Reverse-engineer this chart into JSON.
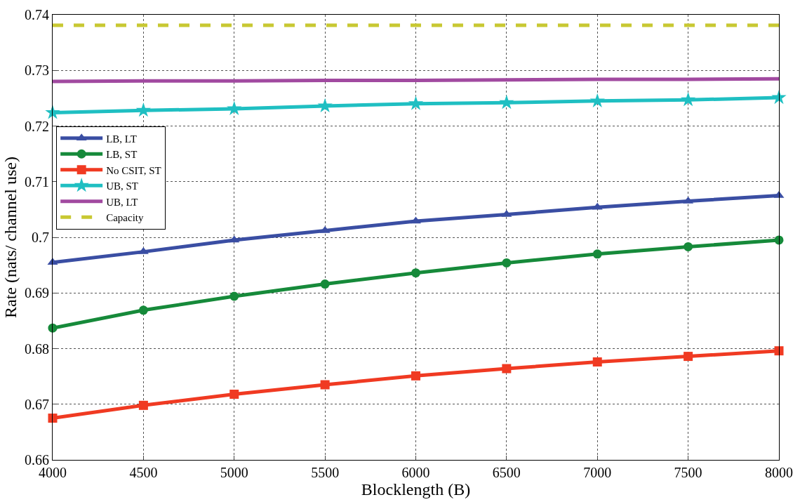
{
  "chart_data": {
    "type": "line",
    "xlabel": "Blocklength (B)",
    "ylabel": "Rate (nats/ channel use)",
    "x": [
      4000,
      4500,
      5000,
      5500,
      6000,
      6500,
      7000,
      7500,
      8000
    ],
    "xlim": [
      4000,
      8000
    ],
    "xticks": [
      4000,
      4500,
      5000,
      5500,
      6000,
      6500,
      7000,
      7500,
      8000
    ],
    "ylim": [
      0.66,
      0.74
    ],
    "yticks": [
      0.66,
      0.67,
      0.68,
      0.69,
      0.7,
      0.71,
      0.72,
      0.73,
      0.74
    ],
    "grid": true,
    "legend": "top left",
    "series": [
      {
        "name": "LB, LT",
        "color": "#3a4ea3",
        "marker": "triangle",
        "line_style": "solid",
        "values": [
          0.6955,
          0.6974,
          0.6995,
          0.7012,
          0.7029,
          0.7041,
          0.7054,
          0.7065,
          0.7075
        ]
      },
      {
        "name": "LB, ST",
        "color": "#168a3a",
        "marker": "circle",
        "line_style": "solid",
        "values": [
          0.6837,
          0.6869,
          0.6894,
          0.6916,
          0.6936,
          0.6954,
          0.697,
          0.6983,
          0.6995
        ]
      },
      {
        "name": "No CSIT, ST",
        "color": "#f03a22",
        "marker": "square",
        "line_style": "solid",
        "values": [
          0.6675,
          0.6698,
          0.6718,
          0.6735,
          0.6751,
          0.6764,
          0.6776,
          0.6786,
          0.6796
        ]
      },
      {
        "name": "UB, ST",
        "color": "#1fbfc2",
        "marker": "star",
        "line_style": "solid",
        "values": [
          0.7224,
          0.7228,
          0.7231,
          0.7236,
          0.724,
          0.7242,
          0.7245,
          0.7247,
          0.7251
        ]
      },
      {
        "name": "UB, LT",
        "color": "#a14aa0",
        "marker": "none",
        "line_style": "solid",
        "values": [
          0.728,
          0.7281,
          0.7281,
          0.7282,
          0.7282,
          0.7283,
          0.7284,
          0.7284,
          0.7285
        ]
      },
      {
        "name": "Capacity",
        "color": "#c8c832",
        "marker": "none",
        "line_style": "dashed",
        "values": [
          0.7381,
          0.7381,
          0.7381,
          0.7381,
          0.7381,
          0.7381,
          0.7381,
          0.7381,
          0.7381
        ]
      }
    ]
  }
}
